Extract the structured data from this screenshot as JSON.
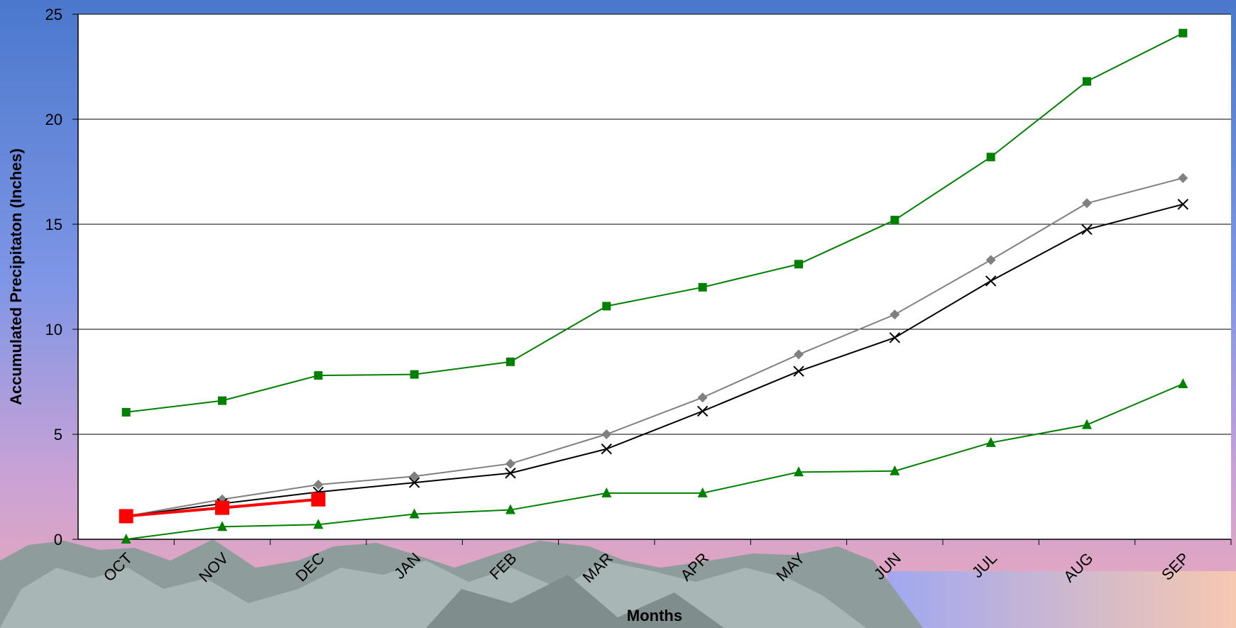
{
  "chart_data": {
    "type": "line",
    "x_label": "Months",
    "y_label": "Accumulated Precipitaton (Inches)",
    "categories": [
      "OCT",
      "NOV",
      "DEC",
      "JAN",
      "FEB",
      "MAR",
      "APR",
      "MAY",
      "JUN",
      "JUL",
      "AUG",
      "SEP"
    ],
    "ylim": [
      0,
      25
    ],
    "yticks": [
      0,
      5,
      10,
      15,
      20,
      25
    ],
    "grid": true,
    "series": [
      {
        "color": "#008000",
        "marker": "square",
        "values": [
          6.05,
          6.6,
          7.8,
          7.85,
          8.45,
          11.1,
          12.0,
          13.1,
          15.2,
          18.2,
          21.8,
          24.1
        ]
      },
      {
        "color": "#808080",
        "marker": "diamond",
        "values": [
          1.1,
          1.9,
          2.6,
          3.0,
          3.6,
          5.0,
          6.75,
          8.8,
          10.7,
          13.3,
          16.0,
          17.2
        ]
      },
      {
        "color": "#000000",
        "marker": "x",
        "values": [
          1.1,
          1.7,
          2.25,
          2.7,
          3.15,
          4.3,
          6.1,
          8.0,
          9.6,
          12.3,
          14.75,
          15.95
        ]
      },
      {
        "color": "#008000",
        "marker": "triangle",
        "values": [
          0,
          0.6,
          0.7,
          1.2,
          1.4,
          2.2,
          2.2,
          3.2,
          3.25,
          4.6,
          5.45,
          7.4
        ]
      },
      {
        "color": "#ff0000",
        "marker": "bigsquare",
        "values": [
          1.1,
          1.5,
          1.9,
          null,
          null,
          null,
          null,
          null,
          null,
          null,
          null,
          null
        ]
      }
    ]
  }
}
